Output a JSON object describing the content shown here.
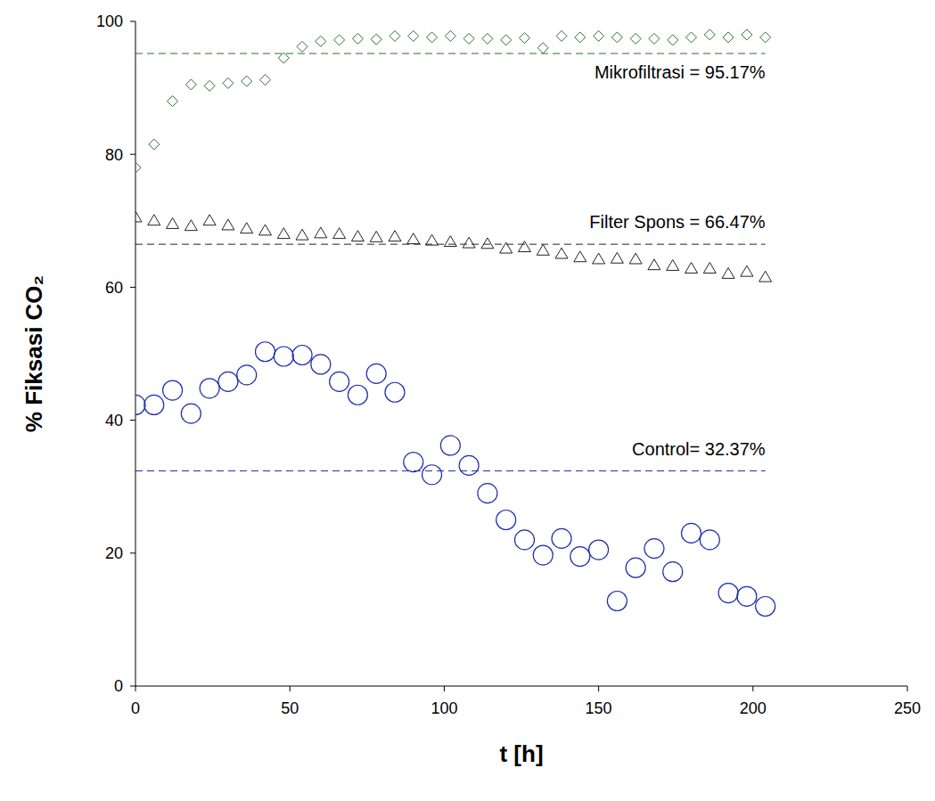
{
  "chart_data": {
    "type": "scatter",
    "x_label": "t [h]",
    "y_label": "% Fiksasi CO₂",
    "x": [
      0,
      6,
      12,
      18,
      24,
      30,
      36,
      42,
      48,
      54,
      60,
      66,
      72,
      78,
      84,
      90,
      96,
      102,
      108,
      114,
      120,
      126,
      132,
      138,
      144,
      150,
      156,
      162,
      168,
      174,
      180,
      186,
      192,
      198,
      204
    ],
    "series": [
      {
        "name": "Mikrofiltrasi",
        "color": "#2e6b2e",
        "marker": "diamond",
        "values": [
          78,
          81.5,
          88,
          90.5,
          90.3,
          90.7,
          91,
          91.2,
          94.5,
          96.2,
          97,
          97.2,
          97.4,
          97.3,
          97.8,
          97.8,
          97.6,
          97.8,
          97.4,
          97.4,
          97.2,
          97.5,
          96,
          97.8,
          97.6,
          97.8,
          97.6,
          97.4,
          97.4,
          97.2,
          97.6,
          98,
          97.6,
          98,
          97.6
        ],
        "mean": 95.17,
        "mean_label": "Mikrofiltrasi = 95.17%"
      },
      {
        "name": "Filter Spons",
        "color": "#222222",
        "marker": "triangle",
        "values": [
          70.5,
          70,
          69.5,
          69.2,
          70,
          69.3,
          68.8,
          68.5,
          68,
          67.8,
          68.1,
          68,
          67.6,
          67.5,
          67.6,
          67.2,
          67,
          66.8,
          66.6,
          66.5,
          65.8,
          66,
          65.5,
          65,
          64.5,
          64.2,
          64.3,
          64.2,
          63.3,
          63.2,
          62.8,
          62.8,
          62,
          62.3,
          61.5
        ],
        "mean": 66.47,
        "mean_label": "Filter Spons = 66.47%"
      },
      {
        "name": "Control",
        "color": "#1f2fb0",
        "marker": "circle",
        "values": [
          42.3,
          42.3,
          44.5,
          41,
          44.8,
          45.8,
          46.8,
          50.3,
          49.6,
          49.8,
          48.4,
          45.8,
          43.8,
          47,
          44.2,
          33.7,
          31.8,
          36.2,
          33.2,
          29,
          25,
          22,
          19.7,
          22.2,
          19.5,
          20.5,
          12.8,
          17.8,
          20.7,
          17.2,
          23,
          22,
          14,
          13.5,
          12
        ],
        "mean": 32.37,
        "mean_label": "Control= 32.37%"
      }
    ],
    "xlim": [
      0,
      250
    ],
    "xticks": [
      0,
      50,
      100,
      150,
      200,
      250
    ],
    "ylim": [
      0,
      100
    ],
    "yticks": [
      0,
      20,
      40,
      60,
      80,
      100
    ],
    "grid": false
  }
}
